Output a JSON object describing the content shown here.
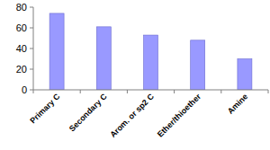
{
  "chart_data": {
    "type": "bar",
    "categories": [
      "Primary C",
      "Secondary C",
      "Arom. or sp2 C",
      "Ether/thioether",
      "Amine"
    ],
    "values": [
      74,
      61,
      53,
      48,
      30
    ],
    "color": "#9999ff",
    "ylim": [
      0,
      80
    ],
    "yticks": [
      0,
      20,
      40,
      60,
      80
    ],
    "grid": false
  }
}
